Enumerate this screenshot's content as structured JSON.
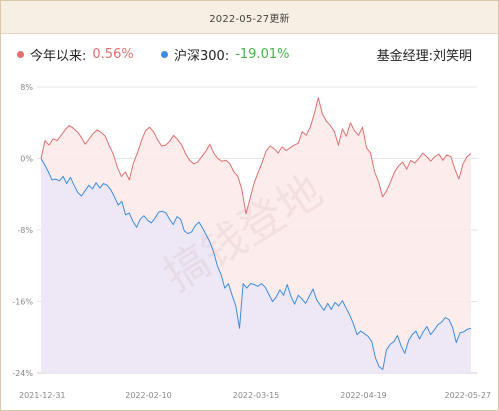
{
  "header": {
    "date_text": "2022-05-27更新"
  },
  "legend": {
    "fund": {
      "label": "今年以来:",
      "value": "0.56%",
      "color": "#e07070"
    },
    "index": {
      "label": "沪深300:",
      "value": "-19.01%",
      "color": "#3a8ee0",
      "value_color": "#47b347"
    },
    "manager_text": "基金经理:刘笑明"
  },
  "watermark": "搞钱登地",
  "chart_data": {
    "type": "area",
    "title": "",
    "xlabel": "",
    "ylabel": "",
    "ylim": [
      -24,
      8
    ],
    "yticks": [
      8,
      0,
      -8,
      -16,
      -24
    ],
    "ytick_labels": [
      "8%",
      "0%",
      "-8%",
      "-16%",
      "-24%"
    ],
    "x_tick_labels": [
      "2021-12-31",
      "2022-02-10",
      "2022-03-15",
      "2022-04-19",
      "2022-05-27"
    ],
    "grid": true,
    "series": [
      {
        "name": "今年以来",
        "color": "#e07070",
        "fill": "#fde9e9",
        "values": [
          0,
          2,
          1.5,
          2.2,
          2,
          2.6,
          3.2,
          3.7,
          3.4,
          3,
          2.4,
          1.6,
          2.2,
          2.8,
          3.2,
          2.9,
          2.5,
          1.4,
          0.5,
          -1,
          -2,
          -1.5,
          -2.4,
          -0.5,
          0.6,
          2,
          3.1,
          3.5,
          3,
          2.1,
          1.4,
          1.5,
          1.9,
          2.6,
          2.1,
          1.5,
          0.5,
          -0.2,
          -0.6,
          -0.4,
          0.2,
          0.8,
          1.6,
          0.6,
          0,
          -0.3,
          -0.2,
          -0.6,
          -1.5,
          -2,
          -3.5,
          -6.2,
          -4.5,
          -2.8,
          -1.6,
          -0.5,
          0.8,
          1.4,
          1.1,
          0.6,
          1.3,
          0.9,
          1.2,
          1.5,
          1.7,
          3,
          2.6,
          3.5,
          5,
          6.8,
          5,
          4.2,
          3.7,
          3,
          1.5,
          3.3,
          2.5,
          4,
          3.1,
          2.6,
          3.5,
          1.2,
          0.6,
          -1.5,
          -2.6,
          -4.3,
          -3.6,
          -2.6,
          -1.5,
          -0.8,
          -0.4,
          -1.2,
          -0.2,
          -0.5,
          0,
          0.6,
          0.2,
          -0.3,
          0.2,
          0.5,
          -0.2,
          0.4,
          0.2,
          -1.2,
          -2.3,
          -0.6,
          0.2,
          0.56
        ]
      },
      {
        "name": "沪深300",
        "color": "#3a8ee0",
        "fill": "#ece7f6",
        "values": [
          0,
          -0.7,
          -1.5,
          -2.4,
          -2.3,
          -2.5,
          -2,
          -2.8,
          -2.1,
          -3,
          -3.8,
          -4.2,
          -3.6,
          -3,
          -3.4,
          -2.7,
          -3.3,
          -2.8,
          -3,
          -3.5,
          -4.3,
          -5.2,
          -4.8,
          -6.3,
          -6.1,
          -7,
          -7.7,
          -6.8,
          -6.4,
          -6.9,
          -7.2,
          -6.7,
          -6,
          -5.9,
          -6.1,
          -6.8,
          -7.4,
          -6.5,
          -6.8,
          -8.1,
          -8.4,
          -8.2,
          -7.5,
          -7.1,
          -7.8,
          -8.6,
          -9.4,
          -10.5,
          -12,
          -13,
          -14.5,
          -14,
          -15.3,
          -16.5,
          -19,
          -14,
          -14.5,
          -14,
          -14.1,
          -14.3,
          -14,
          -14.4,
          -15.2,
          -16,
          -15.5,
          -14.7,
          -15.3,
          -14.1,
          -15.4,
          -16.3,
          -15.3,
          -15.7,
          -16.2,
          -15.4,
          -14.6,
          -15.8,
          -16.4,
          -17,
          -16.2,
          -16.9,
          -16.1,
          -16.5,
          -15.9,
          -16.7,
          -17.5,
          -18.5,
          -19.7,
          -19.3,
          -19.6,
          -19.9,
          -20.5,
          -22.3,
          -23.3,
          -23.6,
          -21.4,
          -20.8,
          -20.5,
          -19.8,
          -21,
          -21.8,
          -20.4,
          -19.7,
          -19.3,
          -20.2,
          -19.4,
          -18.8,
          -19.7,
          -19.2,
          -18.6,
          -18.3,
          -17.8,
          -18,
          -18.9,
          -20.6,
          -19.5,
          -19.4,
          -19.1,
          -19.01
        ]
      }
    ]
  }
}
